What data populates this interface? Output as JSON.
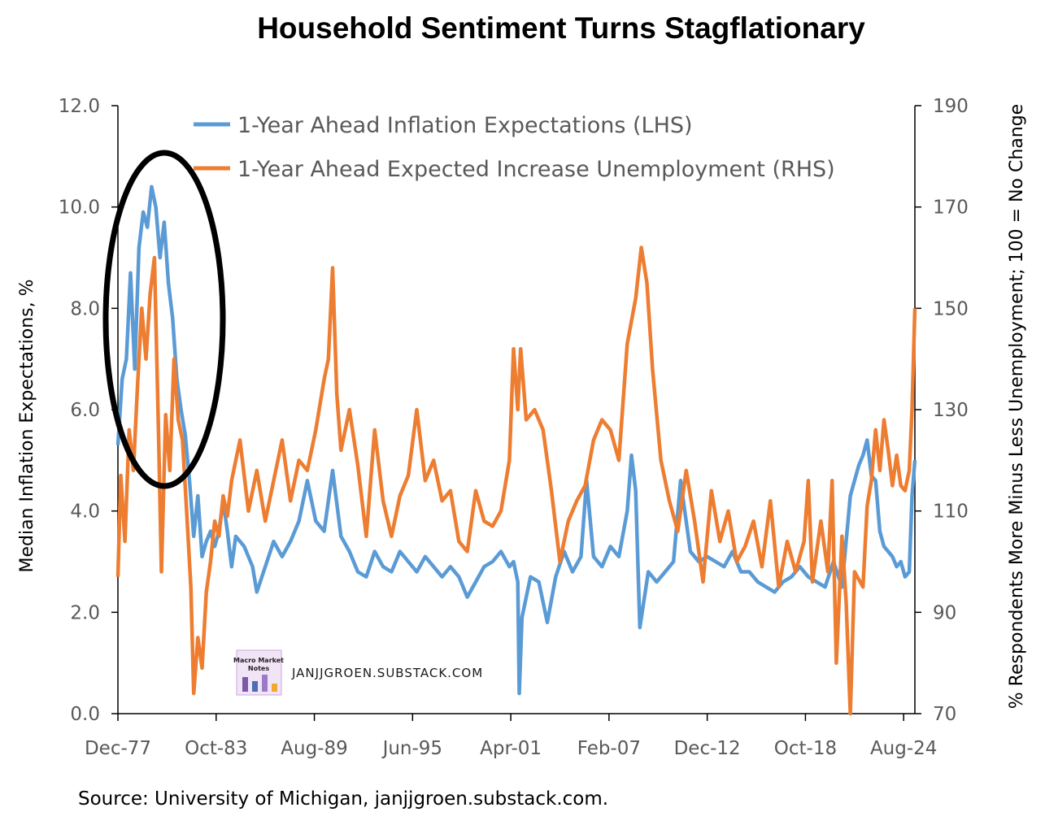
{
  "title": "Household Sentiment Turns Stagflationary",
  "source": "Source: University of Michigan, janjjgroen.substack.com.",
  "watermark": {
    "text": "JANJJGROEN.SUBSTACK.COM",
    "logo_text": "Macro Market Notes"
  },
  "chart_data": {
    "type": "line",
    "title": "Household Sentiment Turns Stagflationary",
    "x_range": [
      "1977-12",
      "2025-04"
    ],
    "x_tick_labels": [
      "Dec-77",
      "Oct-83",
      "Aug-89",
      "Jun-95",
      "Apr-01",
      "Feb-07",
      "Dec-12",
      "Oct-18",
      "Aug-24"
    ],
    "x_tick_positions": [
      "1977-12",
      "1983-10",
      "1989-08",
      "1995-06",
      "2001-04",
      "2007-02",
      "2012-12",
      "2018-10",
      "2024-08"
    ],
    "y_left": {
      "label": "Median Inflation Expectations, %",
      "range": [
        0,
        12
      ],
      "ticks": [
        "0.0",
        "2.0",
        "4.0",
        "6.0",
        "8.0",
        "10.0",
        "12.0"
      ]
    },
    "y_right": {
      "label": "% Respondents More Minus  Less Unemployment; 100 = No Change",
      "range": [
        70,
        190
      ],
      "ticks": [
        "70",
        "90",
        "110",
        "130",
        "150",
        "170",
        "190"
      ]
    },
    "legend_position": "top",
    "annotation": "black ellipse highlighting 1978-1981",
    "series": [
      {
        "name": "1-Year Ahead Inflation Expectations (LHS)",
        "axis": "left",
        "color": "#5B9BD5",
        "points": [
          [
            "1977-12",
            5.3
          ],
          [
            "1978-03",
            6.6
          ],
          [
            "1978-06",
            7.0
          ],
          [
            "1978-09",
            8.7
          ],
          [
            "1978-12",
            6.8
          ],
          [
            "1979-03",
            9.2
          ],
          [
            "1979-06",
            9.9
          ],
          [
            "1979-09",
            9.6
          ],
          [
            "1979-12",
            10.4
          ],
          [
            "1980-03",
            10.0
          ],
          [
            "1980-06",
            9.0
          ],
          [
            "1980-09",
            9.7
          ],
          [
            "1980-12",
            8.5
          ],
          [
            "1981-03",
            7.8
          ],
          [
            "1981-06",
            6.6
          ],
          [
            "1981-09",
            6.0
          ],
          [
            "1981-12",
            5.5
          ],
          [
            "1982-03",
            4.6
          ],
          [
            "1982-06",
            3.5
          ],
          [
            "1982-09",
            4.3
          ],
          [
            "1982-12",
            3.1
          ],
          [
            "1983-03",
            3.4
          ],
          [
            "1983-06",
            3.6
          ],
          [
            "1983-09",
            3.3
          ],
          [
            "1983-12",
            3.6
          ],
          [
            "1984-03",
            4.2
          ],
          [
            "1984-06",
            3.6
          ],
          [
            "1984-09",
            2.9
          ],
          [
            "1984-12",
            3.5
          ],
          [
            "1985-06",
            3.3
          ],
          [
            "1985-12",
            2.9
          ],
          [
            "1986-03",
            2.4
          ],
          [
            "1986-09",
            2.9
          ],
          [
            "1987-03",
            3.4
          ],
          [
            "1987-09",
            3.1
          ],
          [
            "1988-03",
            3.4
          ],
          [
            "1988-09",
            3.8
          ],
          [
            "1989-03",
            4.6
          ],
          [
            "1989-09",
            3.8
          ],
          [
            "1990-03",
            3.6
          ],
          [
            "1990-09",
            4.8
          ],
          [
            "1991-03",
            3.5
          ],
          [
            "1991-09",
            3.2
          ],
          [
            "1992-03",
            2.8
          ],
          [
            "1992-09",
            2.7
          ],
          [
            "1993-03",
            3.2
          ],
          [
            "1993-09",
            2.9
          ],
          [
            "1994-03",
            2.8
          ],
          [
            "1994-09",
            3.2
          ],
          [
            "1995-03",
            3.0
          ],
          [
            "1995-09",
            2.8
          ],
          [
            "1996-03",
            3.1
          ],
          [
            "1996-09",
            2.9
          ],
          [
            "1997-03",
            2.7
          ],
          [
            "1997-09",
            2.9
          ],
          [
            "1998-03",
            2.7
          ],
          [
            "1998-09",
            2.3
          ],
          [
            "1999-03",
            2.6
          ],
          [
            "1999-09",
            2.9
          ],
          [
            "2000-03",
            3.0
          ],
          [
            "2000-09",
            3.2
          ],
          [
            "2001-03",
            2.9
          ],
          [
            "2001-06",
            3.0
          ],
          [
            "2001-09",
            2.6
          ],
          [
            "2001-10",
            0.4
          ],
          [
            "2001-12",
            1.9
          ],
          [
            "2002-06",
            2.7
          ],
          [
            "2002-12",
            2.6
          ],
          [
            "2003-06",
            1.8
          ],
          [
            "2003-12",
            2.7
          ],
          [
            "2004-06",
            3.2
          ],
          [
            "2004-12",
            2.8
          ],
          [
            "2005-06",
            3.1
          ],
          [
            "2005-10",
            4.6
          ],
          [
            "2006-03",
            3.1
          ],
          [
            "2006-09",
            2.9
          ],
          [
            "2007-03",
            3.3
          ],
          [
            "2007-09",
            3.1
          ],
          [
            "2008-03",
            4.0
          ],
          [
            "2008-06",
            5.1
          ],
          [
            "2008-09",
            4.4
          ],
          [
            "2008-12",
            1.7
          ],
          [
            "2009-06",
            2.8
          ],
          [
            "2009-12",
            2.6
          ],
          [
            "2010-06",
            2.8
          ],
          [
            "2010-12",
            3.0
          ],
          [
            "2011-05",
            4.6
          ],
          [
            "2011-12",
            3.2
          ],
          [
            "2012-06",
            3.0
          ],
          [
            "2012-12",
            3.1
          ],
          [
            "2013-06",
            3.0
          ],
          [
            "2013-12",
            2.9
          ],
          [
            "2014-06",
            3.2
          ],
          [
            "2014-12",
            2.8
          ],
          [
            "2015-06",
            2.8
          ],
          [
            "2015-12",
            2.6
          ],
          [
            "2016-06",
            2.5
          ],
          [
            "2016-12",
            2.4
          ],
          [
            "2017-06",
            2.6
          ],
          [
            "2017-12",
            2.7
          ],
          [
            "2018-06",
            2.9
          ],
          [
            "2018-12",
            2.7
          ],
          [
            "2019-06",
            2.6
          ],
          [
            "2019-12",
            2.5
          ],
          [
            "2020-06",
            3.0
          ],
          [
            "2020-12",
            2.5
          ],
          [
            "2021-06",
            4.3
          ],
          [
            "2021-12",
            4.9
          ],
          [
            "2022-03",
            5.1
          ],
          [
            "2022-06",
            5.4
          ],
          [
            "2022-09",
            4.7
          ],
          [
            "2022-12",
            4.6
          ],
          [
            "2023-03",
            3.6
          ],
          [
            "2023-06",
            3.3
          ],
          [
            "2023-09",
            3.2
          ],
          [
            "2023-12",
            3.1
          ],
          [
            "2024-03",
            2.9
          ],
          [
            "2024-06",
            3.0
          ],
          [
            "2024-09",
            2.7
          ],
          [
            "2024-12",
            2.8
          ],
          [
            "2025-02",
            4.3
          ],
          [
            "2025-04",
            5.0
          ]
        ]
      },
      {
        "name": "1-Year Ahead Expected Increase Unemployment (RHS)",
        "axis": "right",
        "color": "#ED7D31",
        "points": [
          [
            "1977-12",
            97
          ],
          [
            "1978-02",
            117
          ],
          [
            "1978-05",
            104
          ],
          [
            "1978-08",
            126
          ],
          [
            "1978-11",
            118
          ],
          [
            "1979-02",
            135
          ],
          [
            "1979-05",
            150
          ],
          [
            "1979-08",
            140
          ],
          [
            "1979-11",
            153
          ],
          [
            "1980-02",
            160
          ],
          [
            "1980-05",
            125
          ],
          [
            "1980-07",
            98
          ],
          [
            "1980-10",
            129
          ],
          [
            "1981-01",
            118
          ],
          [
            "1981-04",
            140
          ],
          [
            "1981-07",
            128
          ],
          [
            "1981-10",
            124
          ],
          [
            "1982-01",
            110
          ],
          [
            "1982-04",
            95
          ],
          [
            "1982-06",
            74
          ],
          [
            "1982-09",
            85
          ],
          [
            "1982-12",
            79
          ],
          [
            "1983-03",
            94
          ],
          [
            "1983-06",
            100
          ],
          [
            "1983-09",
            108
          ],
          [
            "1983-12",
            105
          ],
          [
            "1984-03",
            113
          ],
          [
            "1984-06",
            109
          ],
          [
            "1984-09",
            116
          ],
          [
            "1985-03",
            124
          ],
          [
            "1985-09",
            110
          ],
          [
            "1986-03",
            118
          ],
          [
            "1986-09",
            108
          ],
          [
            "1987-03",
            116
          ],
          [
            "1987-09",
            124
          ],
          [
            "1988-03",
            112
          ],
          [
            "1988-09",
            120
          ],
          [
            "1989-03",
            118
          ],
          [
            "1989-09",
            126
          ],
          [
            "1990-03",
            136
          ],
          [
            "1990-06",
            140
          ],
          [
            "1990-09",
            158
          ],
          [
            "1990-12",
            133
          ],
          [
            "1991-03",
            122
          ],
          [
            "1991-09",
            130
          ],
          [
            "1992-03",
            119
          ],
          [
            "1992-09",
            105
          ],
          [
            "1993-03",
            126
          ],
          [
            "1993-09",
            112
          ],
          [
            "1994-03",
            105
          ],
          [
            "1994-09",
            113
          ],
          [
            "1995-03",
            117
          ],
          [
            "1995-09",
            130
          ],
          [
            "1996-03",
            116
          ],
          [
            "1996-09",
            120
          ],
          [
            "1997-03",
            112
          ],
          [
            "1997-09",
            114
          ],
          [
            "1998-03",
            104
          ],
          [
            "1998-09",
            102
          ],
          [
            "1999-03",
            114
          ],
          [
            "1999-09",
            108
          ],
          [
            "2000-03",
            107
          ],
          [
            "2000-09",
            110
          ],
          [
            "2001-03",
            120
          ],
          [
            "2001-06",
            142
          ],
          [
            "2001-09",
            130
          ],
          [
            "2001-11",
            142
          ],
          [
            "2002-03",
            128
          ],
          [
            "2002-09",
            130
          ],
          [
            "2003-03",
            126
          ],
          [
            "2003-09",
            114
          ],
          [
            "2004-03",
            100
          ],
          [
            "2004-09",
            108
          ],
          [
            "2005-03",
            112
          ],
          [
            "2005-09",
            115
          ],
          [
            "2006-03",
            124
          ],
          [
            "2006-09",
            128
          ],
          [
            "2007-03",
            126
          ],
          [
            "2007-09",
            120
          ],
          [
            "2008-03",
            143
          ],
          [
            "2008-09",
            152
          ],
          [
            "2009-01",
            162
          ],
          [
            "2009-05",
            155
          ],
          [
            "2009-09",
            138
          ],
          [
            "2010-03",
            120
          ],
          [
            "2010-09",
            112
          ],
          [
            "2011-03",
            106
          ],
          [
            "2011-09",
            118
          ],
          [
            "2012-03",
            108
          ],
          [
            "2012-09",
            96
          ],
          [
            "2013-03",
            114
          ],
          [
            "2013-09",
            104
          ],
          [
            "2014-03",
            110
          ],
          [
            "2014-09",
            100
          ],
          [
            "2015-03",
            103
          ],
          [
            "2015-09",
            108
          ],
          [
            "2016-03",
            99
          ],
          [
            "2016-09",
            112
          ],
          [
            "2017-03",
            95
          ],
          [
            "2017-09",
            104
          ],
          [
            "2018-03",
            98
          ],
          [
            "2018-09",
            104
          ],
          [
            "2018-12",
            116
          ],
          [
            "2019-03",
            96
          ],
          [
            "2019-09",
            108
          ],
          [
            "2020-02",
            98
          ],
          [
            "2020-05",
            116
          ],
          [
            "2020-08",
            80
          ],
          [
            "2020-12",
            105
          ],
          [
            "2021-03",
            92
          ],
          [
            "2021-06",
            70
          ],
          [
            "2021-09",
            98
          ],
          [
            "2022-03",
            95
          ],
          [
            "2022-06",
            111
          ],
          [
            "2022-09",
            116
          ],
          [
            "2022-12",
            126
          ],
          [
            "2023-03",
            118
          ],
          [
            "2023-06",
            128
          ],
          [
            "2023-09",
            122
          ],
          [
            "2023-12",
            115
          ],
          [
            "2024-03",
            121
          ],
          [
            "2024-06",
            115
          ],
          [
            "2024-09",
            114
          ],
          [
            "2024-12",
            118
          ],
          [
            "2025-02",
            130
          ],
          [
            "2025-04",
            150
          ]
        ]
      }
    ]
  }
}
